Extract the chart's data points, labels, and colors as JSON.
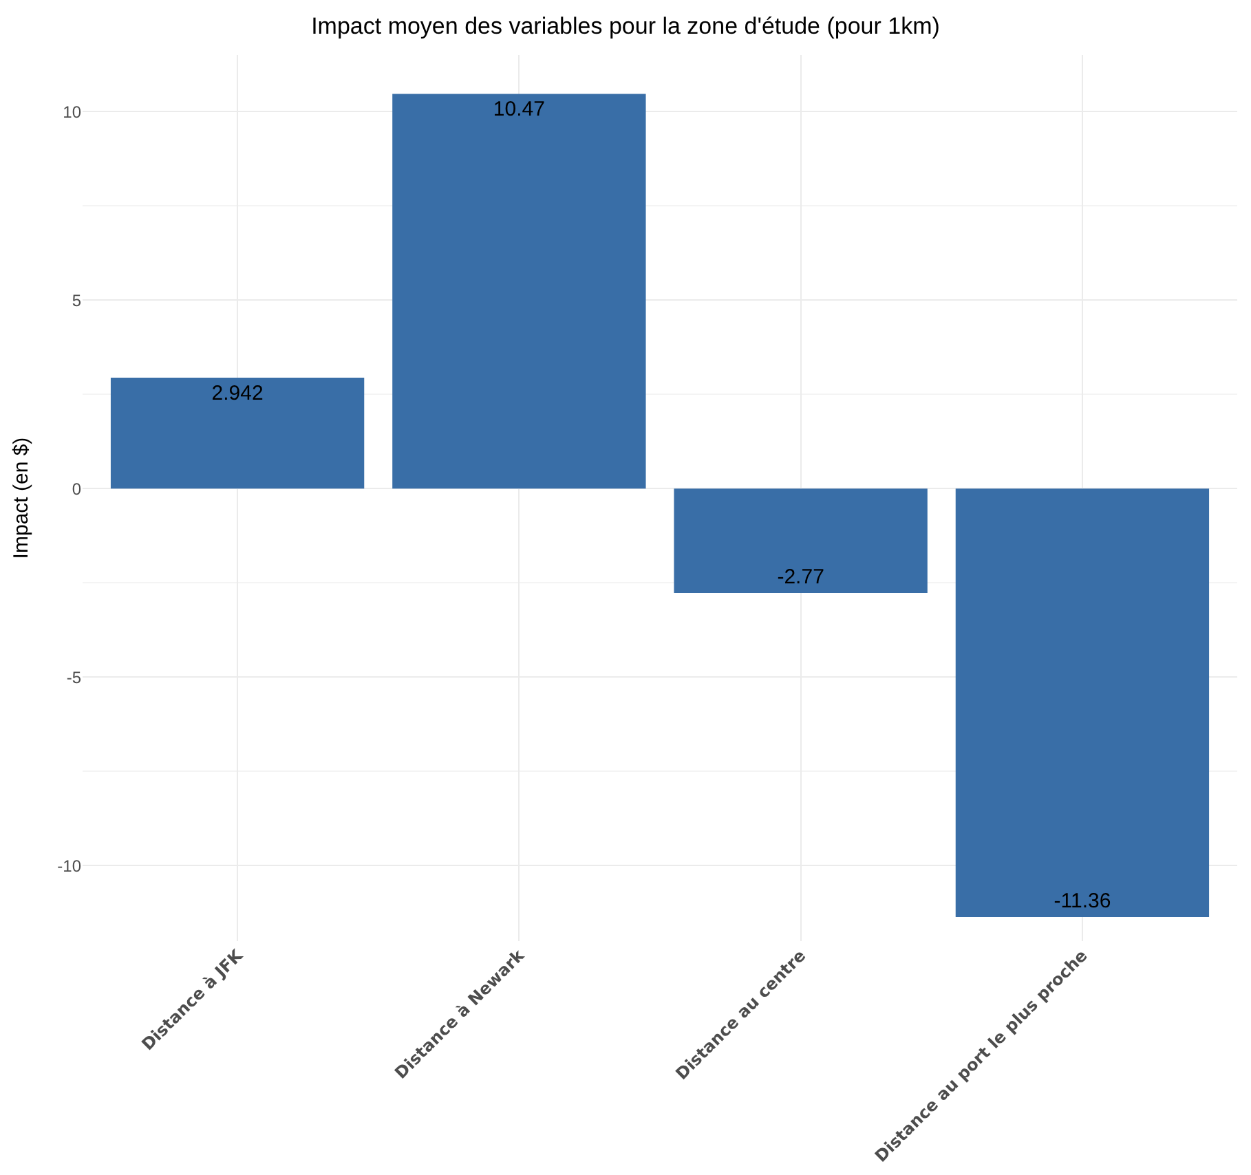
{
  "chart_data": {
    "type": "bar",
    "title": "Impact moyen des variables pour la zone d'étude (pour 1km)",
    "ylabel": "Impact (en $)",
    "categories": [
      "Distance à JFK",
      "Distance à Newark",
      "Distance au centre",
      "Distance au port le plus proche"
    ],
    "values": [
      2.942,
      10.47,
      -2.77,
      -11.36
    ],
    "color": "#396ea7",
    "ylim": [
      -12,
      11.5
    ],
    "yticks": [
      -10,
      -5,
      0,
      5,
      10
    ],
    "grid": true,
    "data_labels": true
  }
}
